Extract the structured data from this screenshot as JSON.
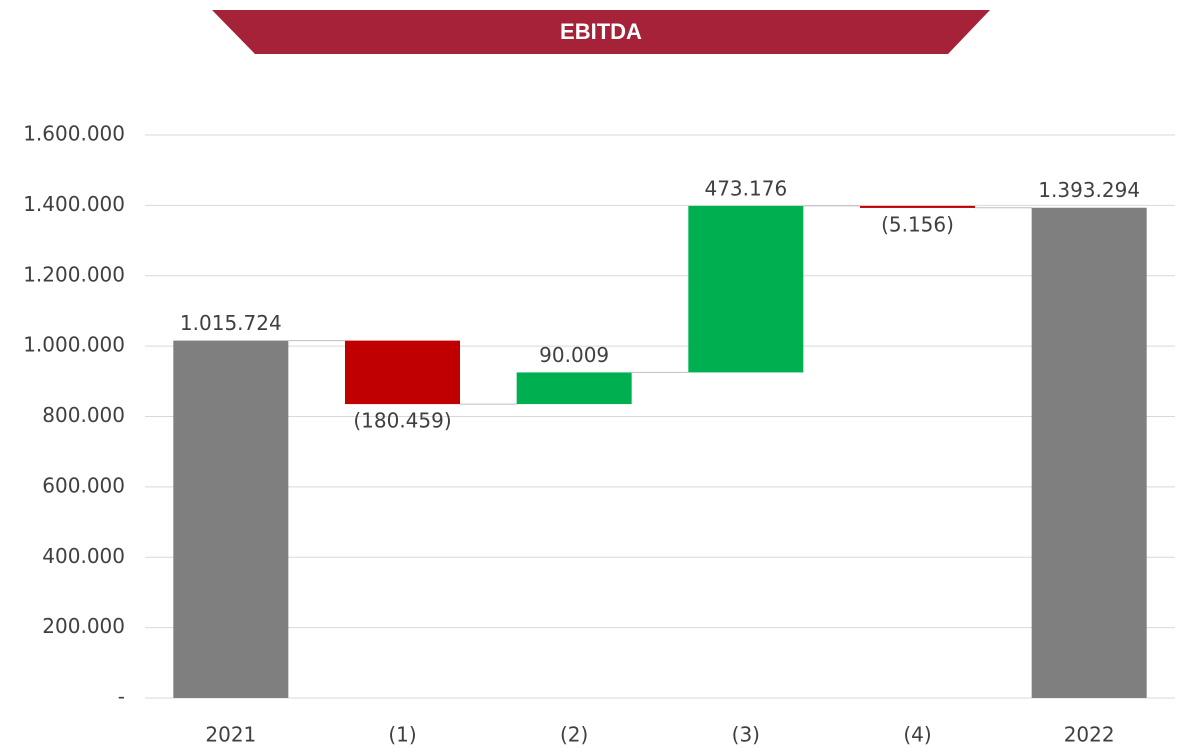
{
  "chart_data": {
    "type": "waterfall",
    "title": "EBITDA",
    "categories": [
      "2021",
      "(1)",
      "(2)",
      "(3)",
      "(4)",
      "2022"
    ],
    "values": [
      1015724,
      -180459,
      90009,
      473176,
      -5156,
      1393294
    ],
    "value_labels": [
      "1.015.724",
      "(180.459)",
      "90.009",
      "473.176",
      "(5.156)",
      "1.393.294"
    ],
    "measure": [
      "absolute",
      "relative",
      "relative",
      "relative",
      "relative",
      "absolute"
    ],
    "colors": {
      "total": "#7f7f7f",
      "increase": "#00b050",
      "decrease": "#c00000"
    },
    "ylim": [
      0,
      1600000
    ],
    "yticks": [
      {
        "value": 0,
        "label": "-"
      },
      {
        "value": 200000,
        "label": "200.000"
      },
      {
        "value": 400000,
        "label": "400.000"
      },
      {
        "value": 600000,
        "label": "600.000"
      },
      {
        "value": 800000,
        "label": "800.000"
      },
      {
        "value": 1000000,
        "label": "1.000.000"
      },
      {
        "value": 1200000,
        "label": "1.200.000"
      },
      {
        "value": 1400000,
        "label": "1.400.000"
      },
      {
        "value": 1600000,
        "label": "1.600.000"
      }
    ],
    "grid": true
  }
}
